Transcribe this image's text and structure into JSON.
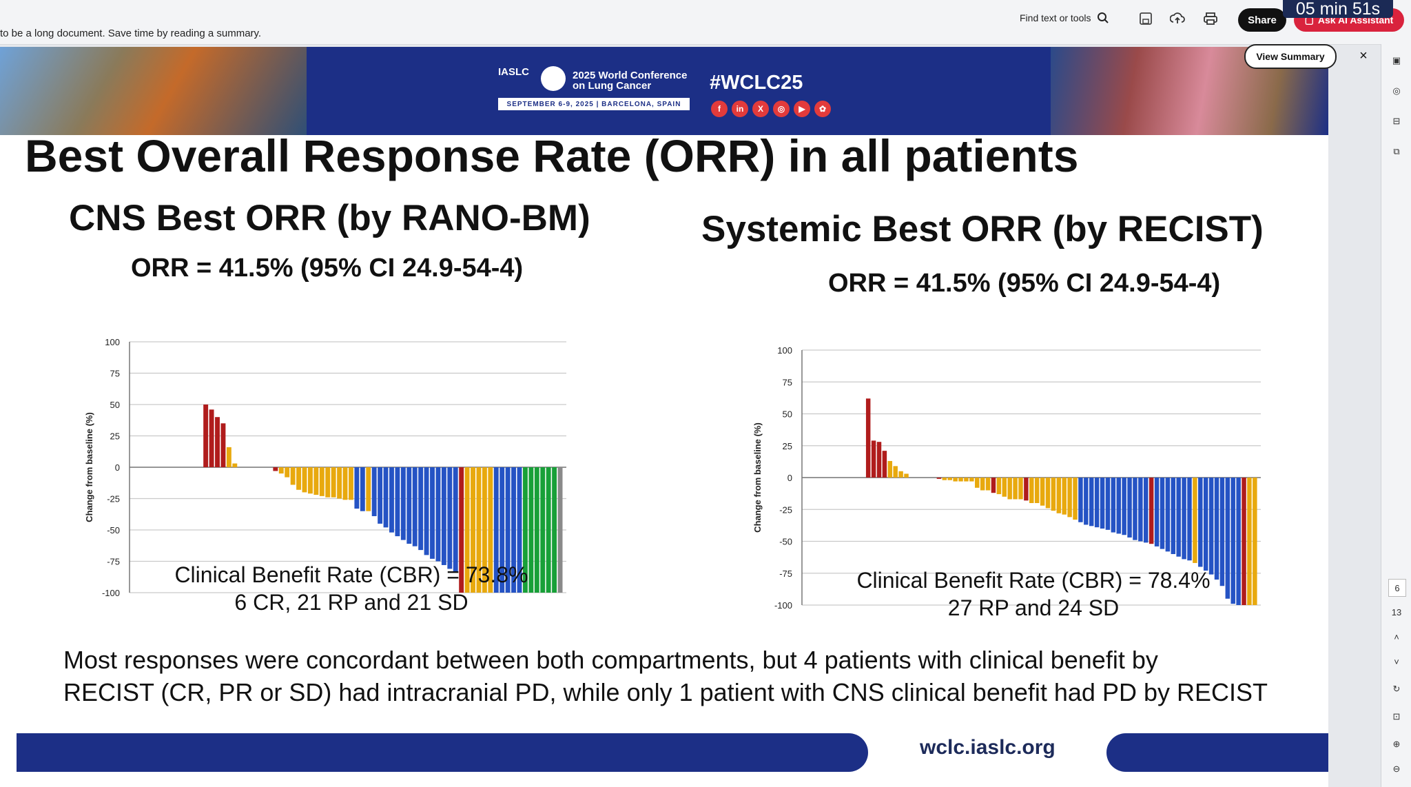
{
  "viewer": {
    "notice": "to be a long document. Save time by reading a summary.",
    "find_label": "Find text or tools",
    "share_label": "Share",
    "ai_label": "Ask AI Assistant",
    "timer": "05 min 51s",
    "view_summary_label": "View Summary",
    "close_label": "×",
    "page_numbers": [
      "6",
      "13"
    ]
  },
  "banner": {
    "logo_text": "IASLC",
    "conference": "2025 World Conference on Lung Cancer",
    "dates": "SEPTEMBER 6-9, 2025 | BARCELONA, SPAIN",
    "hashtag": "#WCLC25",
    "social_icons": [
      "f",
      "in",
      "X",
      "◎",
      "▶",
      "✿"
    ]
  },
  "slide": {
    "title": "Best Overall Response Rate (ORR) in all patients",
    "left": {
      "subtitle": "CNS Best ORR (by RANO-BM)",
      "orr": "ORR = 41.5% (95% CI 24.9-54-4)",
      "cbr_line1": "Clinical Benefit Rate (CBR) = 73.8%",
      "cbr_line2": "6 CR, 21 RP and 21 SD"
    },
    "right": {
      "subtitle": "Systemic Best ORR (by RECIST)",
      "orr": "ORR = 41.5% (95% CI 24.9-54-4)",
      "cbr_line1": "Clinical Benefit Rate (CBR) = 78.4%",
      "cbr_line2": "27 RP and 24 SD"
    },
    "bottom_line1": "Most responses were concordant between both compartments, but 4 patients with clinical benefit by",
    "bottom_line2": "RECIST (CR, PR or SD) had intracranial PD, while only 1 patient with CNS clinical benefit had PD by RECIST",
    "footer_url": "wclc.iaslc.org"
  },
  "colors": {
    "pd": "#b01c1c",
    "sd": "#e8a90e",
    "pr": "#2553c4",
    "cr": "#18a038",
    "ne": "#8a8a8a",
    "navy": "#1c2f86"
  },
  "chart_data": [
    {
      "type": "bar",
      "ylabel": "Change from baseline (%)",
      "ylim": [
        -100,
        100
      ],
      "yticks": [
        100,
        75,
        50,
        25,
        0,
        -25,
        -50,
        -75,
        -100
      ],
      "grid": true,
      "values": [
        0,
        0,
        0,
        0,
        0,
        0,
        0,
        0,
        0,
        0,
        0,
        0,
        50,
        46,
        40,
        35,
        16,
        3,
        0,
        0,
        0,
        0,
        0,
        0,
        -3,
        -5,
        -8,
        -14,
        -18,
        -20,
        -21,
        -22,
        -23,
        -24,
        -24,
        -25,
        -26,
        -26,
        -33,
        -35,
        -35,
        -39,
        -45,
        -48,
        -52,
        -55,
        -58,
        -61,
        -63,
        -66,
        -70,
        -73,
        -75,
        -78,
        -81,
        -83,
        -100,
        -100,
        -100,
        -100,
        -100,
        -100,
        -100,
        -100,
        -100,
        -100,
        -100,
        -100,
        -100,
        -100,
        -100,
        -100,
        -100,
        -100
      ],
      "categories_by_bar": [
        "ne",
        "ne",
        "ne",
        "ne",
        "ne",
        "ne",
        "ne",
        "ne",
        "ne",
        "ne",
        "ne",
        "ne",
        "pd",
        "pd",
        "pd",
        "pd",
        "sd",
        "sd",
        "ne",
        "ne",
        "ne",
        "ne",
        "ne",
        "ne",
        "pd",
        "sd",
        "sd",
        "sd",
        "sd",
        "sd",
        "sd",
        "sd",
        "sd",
        "sd",
        "sd",
        "sd",
        "sd",
        "sd",
        "pr",
        "pr",
        "sd",
        "pr",
        "pr",
        "pr",
        "pr",
        "pr",
        "pr",
        "pr",
        "pr",
        "pr",
        "pr",
        "pr",
        "pr",
        "pr",
        "pr",
        "pr",
        "pd",
        "sd",
        "sd",
        "sd",
        "sd",
        "sd",
        "pr",
        "pr",
        "pr",
        "pr",
        "pr",
        "cr",
        "cr",
        "cr",
        "cr",
        "cr",
        "cr",
        "ne"
      ]
    },
    {
      "type": "bar",
      "ylabel": "Change from baseline (%)",
      "ylim": [
        -100,
        100
      ],
      "yticks": [
        100,
        75,
        50,
        25,
        0,
        -25,
        -50,
        -75,
        -100
      ],
      "grid": true,
      "values": [
        0,
        0,
        0,
        0,
        0,
        0,
        0,
        0,
        0,
        0,
        0,
        62,
        29,
        28,
        21,
        13,
        9,
        5,
        3,
        0,
        0,
        0,
        0,
        0,
        -1,
        -2,
        -2,
        -3,
        -3,
        -3,
        -3,
        -8,
        -10,
        -10,
        -12,
        -13,
        -15,
        -17,
        -17,
        -17,
        -18,
        -20,
        -20,
        -22,
        -24,
        -26,
        -28,
        -29,
        -31,
        -33,
        -35,
        -37,
        -38,
        -39,
        -40,
        -41,
        -43,
        -44,
        -45,
        -47,
        -49,
        -50,
        -51,
        -52,
        -54,
        -56,
        -58,
        -60,
        -62,
        -64,
        -65,
        -67,
        -70,
        -73,
        -76,
        -80,
        -85,
        -95,
        -99,
        -100,
        -100,
        -100,
        -100
      ],
      "categories_by_bar": [
        "ne",
        "ne",
        "ne",
        "ne",
        "ne",
        "ne",
        "ne",
        "ne",
        "ne",
        "ne",
        "ne",
        "pd",
        "pd",
        "pd",
        "pd",
        "sd",
        "sd",
        "sd",
        "sd",
        "ne",
        "ne",
        "ne",
        "ne",
        "ne",
        "pd",
        "sd",
        "sd",
        "sd",
        "sd",
        "sd",
        "sd",
        "sd",
        "sd",
        "sd",
        "pd",
        "sd",
        "sd",
        "sd",
        "sd",
        "sd",
        "pd",
        "sd",
        "sd",
        "sd",
        "sd",
        "sd",
        "sd",
        "sd",
        "sd",
        "sd",
        "pr",
        "pr",
        "pr",
        "pr",
        "pr",
        "pr",
        "pr",
        "pr",
        "pr",
        "pr",
        "pr",
        "pr",
        "pr",
        "pd",
        "pr",
        "pr",
        "pr",
        "pr",
        "pr",
        "pr",
        "pr",
        "sd",
        "pr",
        "pr",
        "pr",
        "pr",
        "pr",
        "pr",
        "pr",
        "pr",
        "pd",
        "sd",
        "sd"
      ]
    }
  ]
}
